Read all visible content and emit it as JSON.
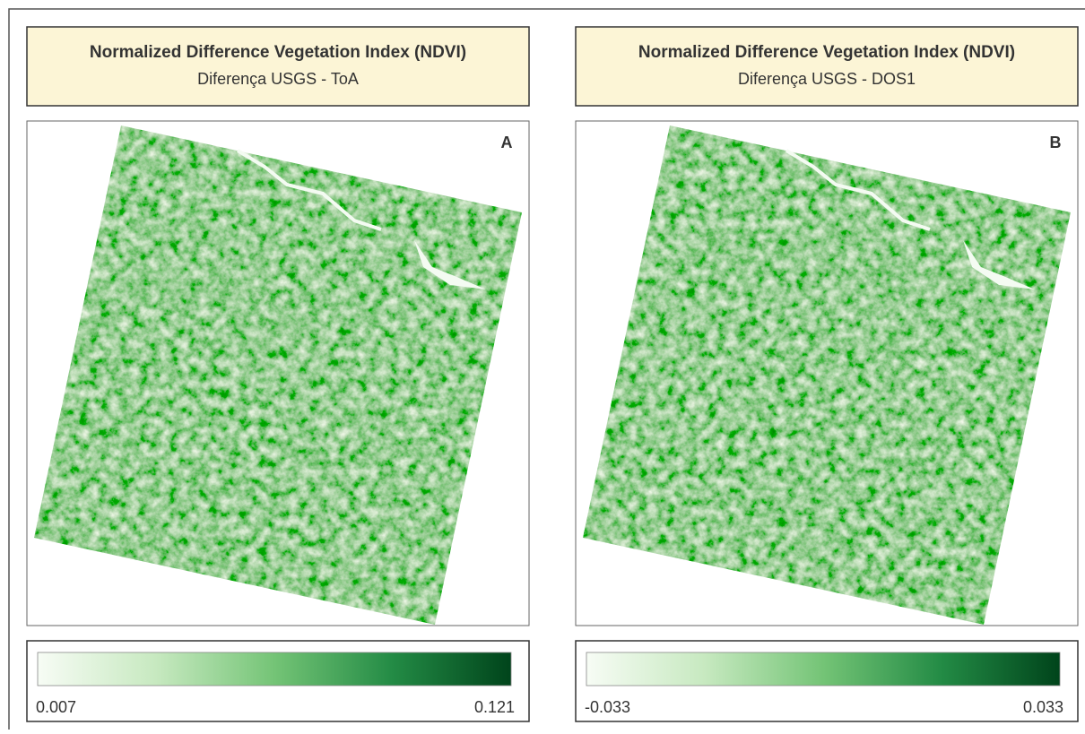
{
  "panels": [
    {
      "title": "Normalized Difference Vegetation Index (NDVI)",
      "subtitle": "Diferença USGS - ToA",
      "label": "A",
      "legend": {
        "min": 0.007,
        "max": 0.121
      }
    },
    {
      "title": "Normalized Difference Vegetation Index (NDVI)",
      "subtitle": "Diferença USGS - DOS1",
      "label": "B",
      "legend": {
        "min": -0.033,
        "max": 0.033
      }
    }
  ]
}
